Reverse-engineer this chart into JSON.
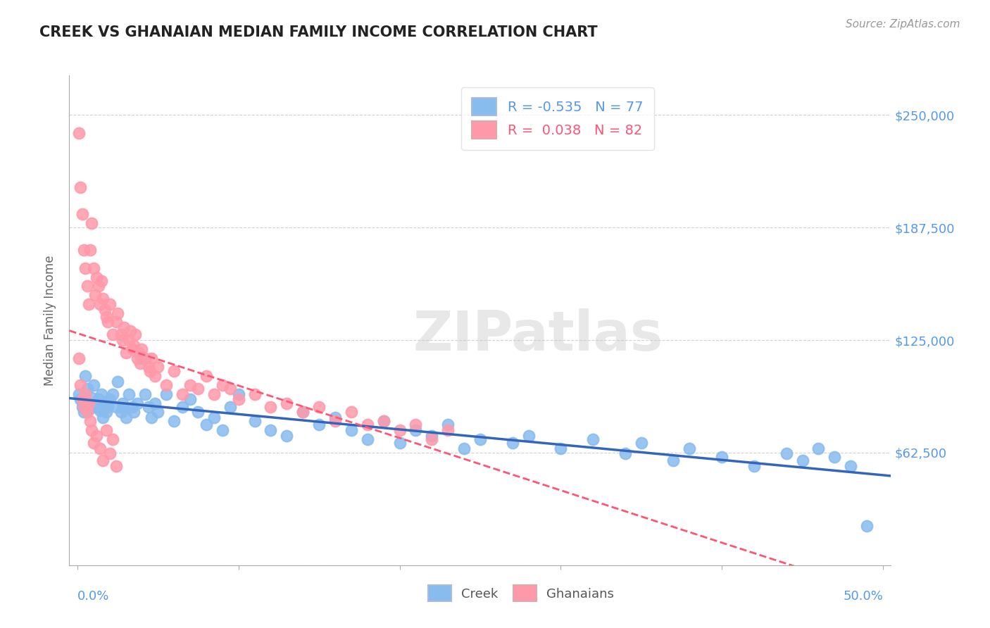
{
  "title": "CREEK VS GHANAIAN MEDIAN FAMILY INCOME CORRELATION CHART",
  "source": "Source: ZipAtlas.com",
  "ylabel": "Median Family Income",
  "yticks": [
    0,
    62500,
    125000,
    187500,
    250000
  ],
  "ytick_labels": [
    "",
    "$62,500",
    "$125,000",
    "$187,500",
    "$250,000"
  ],
  "xlim": [
    -0.005,
    0.505
  ],
  "ylim": [
    0,
    272000
  ],
  "creek_color": "#88BBEE",
  "ghanaian_color": "#FF99AA",
  "creek_line_color": "#3366BB",
  "ghanaian_line_color": "#FF5577",
  "creek_R": -0.535,
  "creek_N": 77,
  "ghanaian_R": 0.038,
  "ghanaian_N": 82,
  "legend_creek": "Creek",
  "legend_ghanaian": "Ghanaians",
  "background_color": "#ffffff",
  "grid_color": "#cccccc",
  "title_color": "#222222",
  "axis_label_color": "#5599EE",
  "creek_x": [
    0.001,
    0.002,
    0.003,
    0.004,
    0.005,
    0.006,
    0.007,
    0.008,
    0.009,
    0.01,
    0.012,
    0.013,
    0.014,
    0.015,
    0.016,
    0.017,
    0.018,
    0.019,
    0.02,
    0.022,
    0.024,
    0.025,
    0.027,
    0.028,
    0.029,
    0.03,
    0.032,
    0.034,
    0.035,
    0.037,
    0.04,
    0.042,
    0.044,
    0.046,
    0.048,
    0.05,
    0.055,
    0.06,
    0.065,
    0.07,
    0.075,
    0.08,
    0.085,
    0.09,
    0.095,
    0.1,
    0.11,
    0.12,
    0.13,
    0.14,
    0.15,
    0.16,
    0.17,
    0.18,
    0.19,
    0.2,
    0.21,
    0.22,
    0.23,
    0.24,
    0.25,
    0.27,
    0.28,
    0.3,
    0.32,
    0.34,
    0.35,
    0.37,
    0.38,
    0.4,
    0.42,
    0.44,
    0.45,
    0.46,
    0.47,
    0.48,
    0.49
  ],
  "creek_y": [
    95000,
    92000,
    88000,
    85000,
    105000,
    98000,
    90000,
    87000,
    93000,
    100000,
    88000,
    92000,
    86000,
    95000,
    82000,
    90000,
    85000,
    88000,
    92000,
    95000,
    88000,
    102000,
    85000,
    90000,
    87000,
    82000,
    95000,
    88000,
    85000,
    90000,
    115000,
    95000,
    88000,
    82000,
    90000,
    85000,
    95000,
    80000,
    88000,
    92000,
    85000,
    78000,
    82000,
    75000,
    88000,
    95000,
    80000,
    75000,
    72000,
    85000,
    78000,
    82000,
    75000,
    70000,
    80000,
    68000,
    75000,
    72000,
    78000,
    65000,
    70000,
    68000,
    72000,
    65000,
    70000,
    62000,
    68000,
    58000,
    65000,
    60000,
    55000,
    62000,
    58000,
    65000,
    60000,
    55000,
    22000
  ],
  "ghanaian_x": [
    0.001,
    0.002,
    0.003,
    0.004,
    0.005,
    0.006,
    0.007,
    0.008,
    0.009,
    0.01,
    0.011,
    0.012,
    0.013,
    0.014,
    0.015,
    0.016,
    0.017,
    0.018,
    0.019,
    0.02,
    0.022,
    0.024,
    0.025,
    0.027,
    0.028,
    0.029,
    0.03,
    0.032,
    0.033,
    0.034,
    0.035,
    0.036,
    0.037,
    0.038,
    0.039,
    0.04,
    0.042,
    0.044,
    0.045,
    0.046,
    0.048,
    0.05,
    0.055,
    0.06,
    0.065,
    0.07,
    0.075,
    0.08,
    0.085,
    0.09,
    0.095,
    0.1,
    0.11,
    0.12,
    0.13,
    0.14,
    0.15,
    0.16,
    0.17,
    0.18,
    0.19,
    0.2,
    0.21,
    0.22,
    0.23,
    0.001,
    0.002,
    0.003,
    0.004,
    0.005,
    0.006,
    0.007,
    0.008,
    0.009,
    0.01,
    0.012,
    0.014,
    0.016,
    0.018,
    0.02,
    0.022,
    0.024
  ],
  "ghanaian_y": [
    240000,
    210000,
    195000,
    175000,
    165000,
    155000,
    145000,
    175000,
    190000,
    165000,
    150000,
    160000,
    155000,
    145000,
    158000,
    148000,
    142000,
    138000,
    135000,
    145000,
    128000,
    135000,
    140000,
    128000,
    125000,
    132000,
    118000,
    125000,
    130000,
    120000,
    122000,
    128000,
    115000,
    118000,
    112000,
    120000,
    115000,
    110000,
    108000,
    115000,
    105000,
    110000,
    100000,
    108000,
    95000,
    100000,
    98000,
    105000,
    95000,
    100000,
    98000,
    92000,
    95000,
    88000,
    90000,
    85000,
    88000,
    80000,
    85000,
    78000,
    80000,
    75000,
    78000,
    70000,
    75000,
    115000,
    100000,
    92000,
    88000,
    95000,
    85000,
    90000,
    80000,
    75000,
    68000,
    72000,
    65000,
    58000,
    75000,
    62000,
    70000,
    55000
  ]
}
